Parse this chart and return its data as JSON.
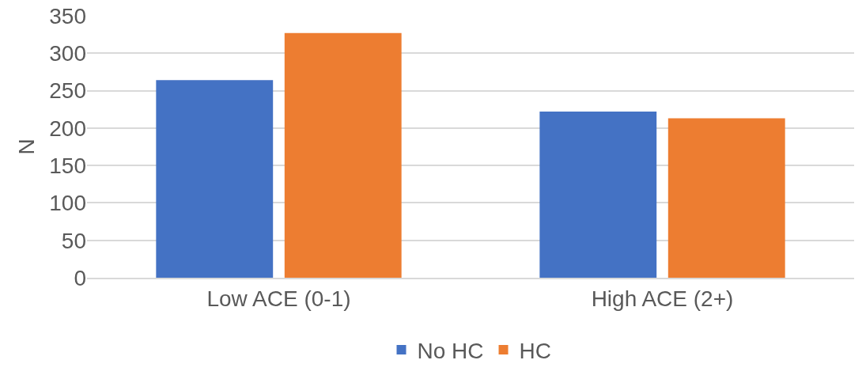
{
  "chart_data": {
    "type": "bar",
    "ylabel": "N",
    "categories": [
      "Low ACE (0-1)",
      "High ACE (2+)"
    ],
    "series": [
      {
        "name": "No HC",
        "color": "#4472c4",
        "values": [
          264,
          222
        ]
      },
      {
        "name": "HC",
        "color": "#ed7d31",
        "values": [
          327,
          213
        ]
      }
    ],
    "ylim": [
      0,
      350
    ],
    "yticks": [
      0,
      50,
      100,
      150,
      200,
      250,
      300,
      350
    ],
    "grid": "y",
    "legend": "bottom"
  }
}
